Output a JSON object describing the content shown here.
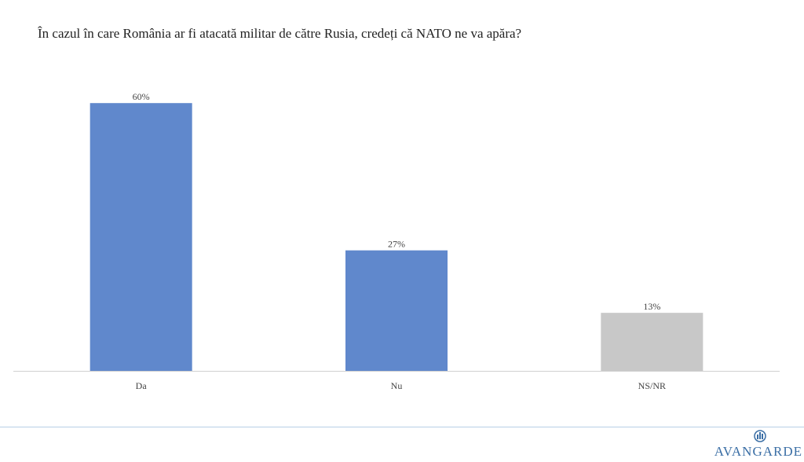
{
  "chart_data": {
    "type": "bar",
    "title": "În cazul în care România ar fi atacată militar de către Rusia, credeți că NATO ne va apăra?",
    "categories": [
      "Da",
      "Nu",
      "NS/NR"
    ],
    "values": [
      60,
      27,
      13
    ],
    "value_labels": [
      "60%",
      "27%",
      "13%"
    ],
    "colors": [
      "#6088cc",
      "#6088cc",
      "#c8c8c8"
    ]
  },
  "logo": "AVANGARDE"
}
